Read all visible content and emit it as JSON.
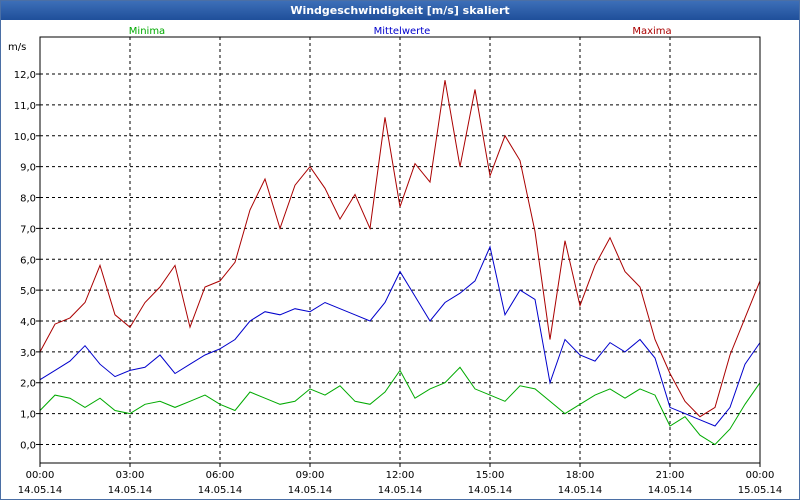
{
  "window": {
    "title": "Windgeschwindigkeit [m/s] skaliert"
  },
  "chart_data": {
    "type": "line",
    "title": "Windgeschwindigkeit [m/s] skaliert",
    "ylabel": "m/s",
    "xlabel": "",
    "ylim": [
      -0.6,
      13.2
    ],
    "xlim": [
      0,
      24
    ],
    "y_ticks": [
      "0,0",
      "1,0",
      "2,0",
      "3,0",
      "4,0",
      "5,0",
      "6,0",
      "7,0",
      "8,0",
      "9,0",
      "10,0",
      "11,0",
      "12,0"
    ],
    "x_ticks": [
      {
        "time": "00:00",
        "date": "14.05.14"
      },
      {
        "time": "03:00",
        "date": "14.05.14"
      },
      {
        "time": "06:00",
        "date": "14.05.14"
      },
      {
        "time": "09:00",
        "date": "14.05.14"
      },
      {
        "time": "12:00",
        "date": "14.05.14"
      },
      {
        "time": "15:00",
        "date": "14.05.14"
      },
      {
        "time": "18:00",
        "date": "14.05.14"
      },
      {
        "time": "21:00",
        "date": "14.05.14"
      },
      {
        "time": "00:00",
        "date": "15.05.14"
      }
    ],
    "grid": true,
    "x_hours": [
      0,
      0.5,
      1,
      1.5,
      2,
      2.5,
      3,
      3.5,
      4,
      4.5,
      5,
      5.5,
      6,
      6.5,
      7,
      7.5,
      8,
      8.5,
      9,
      9.5,
      10,
      10.5,
      11,
      11.5,
      12,
      12.5,
      13,
      13.5,
      14,
      14.5,
      15,
      15.5,
      16,
      16.5,
      17,
      17.5,
      18,
      18.5,
      19,
      19.5,
      20,
      20.5,
      21,
      21.5,
      22,
      22.5,
      23,
      23.5,
      24
    ],
    "series": [
      {
        "name": "Minima",
        "color": "#00aa00",
        "values": [
          1.1,
          1.6,
          1.5,
          1.2,
          1.5,
          1.1,
          1.0,
          1.3,
          1.4,
          1.2,
          1.4,
          1.6,
          1.3,
          1.1,
          1.7,
          1.5,
          1.3,
          1.4,
          1.8,
          1.6,
          1.9,
          1.4,
          1.3,
          1.7,
          2.4,
          1.5,
          1.8,
          2.0,
          2.5,
          1.8,
          1.6,
          1.4,
          1.9,
          1.8,
          1.4,
          1.0,
          1.3,
          1.6,
          1.8,
          1.5,
          1.8,
          1.6,
          0.6,
          0.9,
          0.3,
          0.0,
          0.5,
          1.3,
          2.0
        ]
      },
      {
        "name": "Mittelwerte",
        "color": "#0000cc",
        "values": [
          2.1,
          2.4,
          2.7,
          3.2,
          2.6,
          2.2,
          2.4,
          2.5,
          2.9,
          2.3,
          2.6,
          2.9,
          3.1,
          3.4,
          4.0,
          4.3,
          4.2,
          4.4,
          4.3,
          4.6,
          4.4,
          4.2,
          4.0,
          4.6,
          5.6,
          4.8,
          4.0,
          4.6,
          4.9,
          5.3,
          6.4,
          4.2,
          5.0,
          4.7,
          2.0,
          3.4,
          2.9,
          2.7,
          3.3,
          3.0,
          3.4,
          2.8,
          1.2,
          1.0,
          0.8,
          0.6,
          1.2,
          2.6,
          3.3
        ]
      },
      {
        "name": "Maxima",
        "color": "#aa0000",
        "values": [
          3.0,
          3.9,
          4.1,
          4.6,
          5.8,
          4.2,
          3.8,
          4.6,
          5.1,
          5.8,
          3.8,
          5.1,
          5.3,
          5.9,
          7.6,
          8.6,
          7.0,
          8.4,
          9.0,
          8.3,
          7.3,
          8.1,
          7.0,
          10.6,
          7.7,
          9.1,
          8.5,
          11.8,
          9.0,
          11.5,
          8.7,
          10.0,
          9.2,
          6.9,
          3.4,
          6.6,
          4.5,
          5.8,
          6.7,
          5.6,
          5.1,
          3.4,
          2.3,
          1.4,
          0.9,
          1.2,
          2.9,
          4.1,
          5.3
        ]
      }
    ]
  }
}
